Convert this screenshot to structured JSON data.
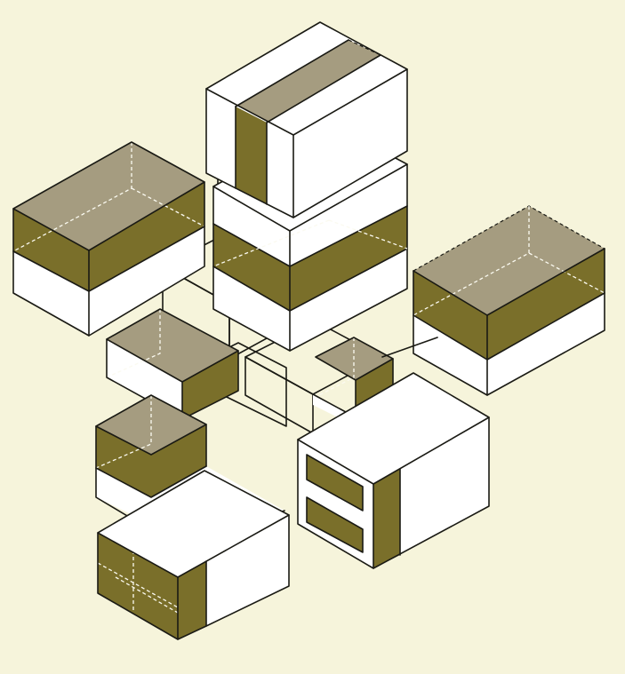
{
  "colors": {
    "background": "#f6f4db",
    "face_white": "#ffffff",
    "shade_olive": "#7a6f2a",
    "shade_top": "#a59c80",
    "outline": "#1a1a14"
  },
  "blocks": [
    {
      "name": "top-center-block"
    },
    {
      "name": "center-block"
    },
    {
      "name": "left-block"
    },
    {
      "name": "right-block"
    },
    {
      "name": "mid-left-notched-block"
    },
    {
      "name": "mid-center-notched-block"
    },
    {
      "name": "lower-left-block"
    },
    {
      "name": "lower-right-slotted-block"
    },
    {
      "name": "bottom-left-block"
    }
  ]
}
